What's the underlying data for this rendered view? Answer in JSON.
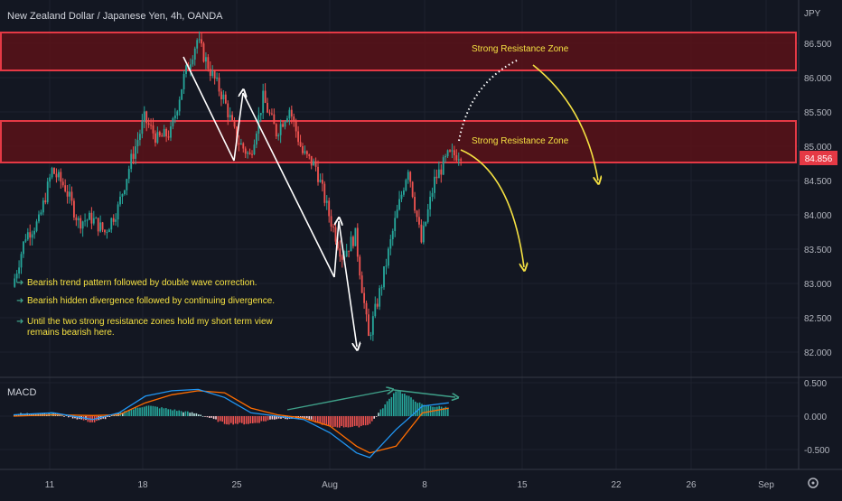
{
  "header": {
    "title": "New Zealand Dollar / Japanese Yen, 4h, OANDA",
    "currency": "JPY"
  },
  "price_axis": {
    "ticks": [
      "86.500",
      "86.000",
      "85.500",
      "85.000",
      "84.500",
      "84.000",
      "83.500",
      "83.000",
      "82.500",
      "82.000"
    ],
    "current_price": "84.856"
  },
  "macd_axis": {
    "label": "MACD",
    "ticks": [
      "0.500",
      "0.000",
      "-0.500"
    ]
  },
  "time_axis": {
    "ticks": [
      "11",
      "18",
      "25",
      "Aug",
      "8",
      "15",
      "22",
      "26",
      "Sep"
    ]
  },
  "zones": [
    {
      "label": "Strong Resistance Zone",
      "low": 86.13,
      "high": 86.66
    },
    {
      "label": "Strong Resistance Zone",
      "low": 84.8,
      "high": 85.38
    }
  ],
  "notes": [
    "Bearish trend pattern followed by double wave correction.",
    "Bearish hidden divergence followed by continuing divergence.",
    "Until the two strong resistance zones hold my short term view remains bearish here."
  ],
  "colors": {
    "background": "#131722",
    "bull": "#26a69a",
    "bear": "#ef5350",
    "zone_fill": "#5a1218",
    "zone_border": "#e53945",
    "annotation": "#f5e142",
    "macd_line": "#2196f3",
    "signal_line": "#ff6d00"
  },
  "chart_data": {
    "type": "candlestick",
    "timeframe": "4h",
    "y_range": [
      81.85,
      86.85
    ],
    "anchors": [
      {
        "date": "Jul 07",
        "price": 82.95
      },
      {
        "date": "Jul 08",
        "price": 83.7
      },
      {
        "date": "Jul 09",
        "price": 83.9
      },
      {
        "date": "Jul 10",
        "price": 84.65
      },
      {
        "date": "Jul 11",
        "price": 84.4
      },
      {
        "date": "Jul 12",
        "price": 83.9
      },
      {
        "date": "Jul 13",
        "price": 83.95
      },
      {
        "date": "Jul 14",
        "price": 83.75
      },
      {
        "date": "Jul 15",
        "price": 84.1
      },
      {
        "date": "Jul 16",
        "price": 84.8
      },
      {
        "date": "Jul 17",
        "price": 85.4
      },
      {
        "date": "Jul 18",
        "price": 85.1
      },
      {
        "date": "Jul 19",
        "price": 85.2
      },
      {
        "date": "Jul 20",
        "price": 86.0
      },
      {
        "date": "Jul 21",
        "price": 86.55
      },
      {
        "date": "Jul 22",
        "price": 86.1
      },
      {
        "date": "Jul 23",
        "price": 85.7
      },
      {
        "date": "Jul 24",
        "price": 85.1
      },
      {
        "date": "Jul 25",
        "price": 84.85
      },
      {
        "date": "Jul 26",
        "price": 85.7
      },
      {
        "date": "Jul 27",
        "price": 85.2
      },
      {
        "date": "Jul 28",
        "price": 85.55
      },
      {
        "date": "Jul 29",
        "price": 84.9
      },
      {
        "date": "Jul 30",
        "price": 84.7
      },
      {
        "date": "Jul 31",
        "price": 84.0
      },
      {
        "date": "Aug 01",
        "price": 83.4
      },
      {
        "date": "Aug 02",
        "price": 83.7
      },
      {
        "date": "Aug 03",
        "price": 82.2
      },
      {
        "date": "Aug 04",
        "price": 83.0
      },
      {
        "date": "Aug 05",
        "price": 83.9
      },
      {
        "date": "Aug 06",
        "price": 84.7
      },
      {
        "date": "Aug 07",
        "price": 83.6
      },
      {
        "date": "Aug 08",
        "price": 84.5
      },
      {
        "date": "Aug 09",
        "price": 84.85
      },
      {
        "date": "Aug 09 12:00",
        "price": 84.9
      }
    ],
    "macd_range": [
      -0.72,
      0.55
    ],
    "macd": [
      {
        "date": "Jul 07",
        "macd": 0.02,
        "signal": 0.0
      },
      {
        "date": "Jul 10",
        "macd": 0.05,
        "signal": 0.02
      },
      {
        "date": "Jul 13",
        "macd": -0.05,
        "signal": 0.01
      },
      {
        "date": "Jul 15",
        "macd": 0.05,
        "signal": 0.02
      },
      {
        "date": "Jul 17",
        "macd": 0.3,
        "signal": 0.2
      },
      {
        "date": "Jul 19",
        "macd": 0.38,
        "signal": 0.32
      },
      {
        "date": "Jul 21",
        "macd": 0.4,
        "signal": 0.38
      },
      {
        "date": "Jul 23",
        "macd": 0.28,
        "signal": 0.35
      },
      {
        "date": "Jul 25",
        "macd": 0.05,
        "signal": 0.12
      },
      {
        "date": "Jul 27",
        "macd": 0.0,
        "signal": 0.02
      },
      {
        "date": "Jul 29",
        "macd": -0.05,
        "signal": -0.03
      },
      {
        "date": "Jul 31",
        "macd": -0.25,
        "signal": -0.15
      },
      {
        "date": "Aug 02",
        "macd": -0.55,
        "signal": -0.45
      },
      {
        "date": "Aug 03",
        "macd": -0.62,
        "signal": -0.55
      },
      {
        "date": "Aug 05",
        "macd": -0.2,
        "signal": -0.45
      },
      {
        "date": "Aug 07",
        "macd": 0.15,
        "signal": 0.05
      },
      {
        "date": "Aug 09",
        "macd": 0.2,
        "signal": 0.12
      }
    ]
  }
}
